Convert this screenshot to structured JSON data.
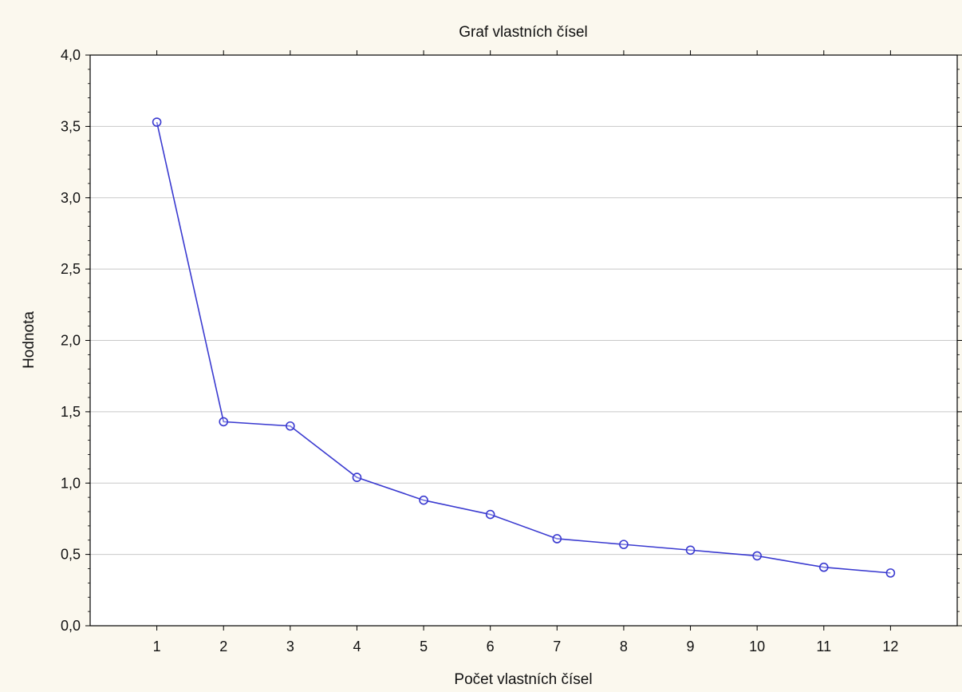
{
  "chart_data": {
    "type": "line",
    "title": "Graf vlastních čísel",
    "xlabel": "Počet vlastních čísel",
    "ylabel": "Hodnota",
    "x": [
      1,
      2,
      3,
      4,
      5,
      6,
      7,
      8,
      9,
      10,
      11,
      12
    ],
    "y_tick_labels": [
      "0,0",
      "0,5",
      "1,0",
      "1,5",
      "2,0",
      "2,5",
      "3,0",
      "3,5",
      "4,0"
    ],
    "series": [
      {
        "values": [
          3.53,
          1.43,
          1.4,
          1.04,
          0.88,
          0.78,
          0.61,
          0.57,
          0.53,
          0.49,
          0.41,
          0.37
        ]
      }
    ],
    "xlim": [
      0,
      13
    ],
    "ylim": [
      0,
      4
    ],
    "y_tick_step": 0.5,
    "grid": "horizontal",
    "marker": "circle",
    "colors": {
      "series": "#3a3ad0",
      "background": "#fbf8ee",
      "plot_background": "#ffffff",
      "grid": "#c8c8c8",
      "axis": "#000000"
    }
  }
}
